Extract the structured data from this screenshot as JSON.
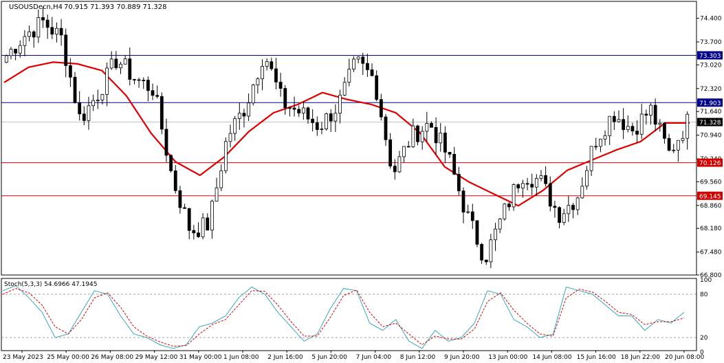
{
  "header": {
    "symbol_label": "USOUSDecn,H4",
    "ohlc_label": "70.915 71.393 70.889 71.328"
  },
  "oscillator": {
    "label": "Stoch(5,3,3) 54.6966 47.1945",
    "levels": [
      20,
      80
    ],
    "scale_labels": [
      "100",
      "80",
      "20",
      "0"
    ]
  },
  "colors": {
    "candle_outline": "#000000",
    "bear_fill": "#000000",
    "bull_fill": "#ffffff",
    "moving_average": "#e00000",
    "resistance_line": "#00008b",
    "support_line": "#d40000",
    "stoch_main": "#3aa6b8",
    "stoch_signal": "#d40000",
    "current_price_bg": "#000000"
  },
  "price_axis": {
    "min": 66.8,
    "max": 74.9,
    "tick_labels": [
      "74.400",
      "73.700",
      "73.020",
      "72.320",
      "71.640",
      "70.940",
      "70.240",
      "69.560",
      "68.860",
      "68.180",
      "67.480",
      "66.800"
    ]
  },
  "levels": [
    {
      "label": "73.303",
      "value": 73.303,
      "kind": "resistance"
    },
    {
      "label": "71.903",
      "value": 71.903,
      "kind": "resistance"
    },
    {
      "label": "71.328",
      "value": 71.328,
      "kind": "current"
    },
    {
      "label": "70.126",
      "value": 70.126,
      "kind": "support"
    },
    {
      "label": "69.145",
      "value": 69.145,
      "kind": "support"
    }
  ],
  "time_labels": [
    "23 May 2023",
    "25 May 00:00",
    "26 May 08:00",
    "29 May 12:00",
    "31 May 00:00",
    "1 Jun 08:00",
    "2 Jun 16:00",
    "5 Jun 20:00",
    "7 Jun 04:00",
    "8 Jun 12:00",
    "9 Jun 20:00",
    "13 Jun 00:00",
    "14 Jun 08:00",
    "15 Jun 16:00",
    "18 Jun 22:00",
    "20 Jun 08:00"
  ],
  "chart_data": {
    "type": "candlestick",
    "symbol": "USOUSDecn",
    "timeframe": "H4",
    "ylim": [
      66.8,
      74.9
    ],
    "anchors": [
      {
        "c": 73.3
      },
      {
        "c": 73.9
      },
      {
        "c": 74.3
      },
      {
        "c": 73.8
      },
      {
        "c": 71.4
      },
      {
        "c": 72.2
      },
      {
        "c": 73.2
      },
      {
        "c": 72.6
      },
      {
        "c": 72.3
      },
      {
        "c": 69.7
      },
      {
        "c": 68.1
      },
      {
        "c": 68.3
      },
      {
        "c": 70.9
      },
      {
        "c": 71.8
      },
      {
        "c": 73.4
      },
      {
        "c": 71.9
      },
      {
        "c": 71.6
      },
      {
        "c": 71.2
      },
      {
        "c": 71.8
      },
      {
        "c": 73.1
      },
      {
        "c": 72.6
      },
      {
        "c": 69.8
      },
      {
        "c": 70.9
      },
      {
        "c": 71.3
      },
      {
        "c": 70.3
      },
      {
        "c": 68.6
      },
      {
        "c": 67.3
      },
      {
        "c": 68.6
      },
      {
        "c": 69.8
      },
      {
        "c": 69.6
      },
      {
        "c": 68.6
      },
      {
        "c": 69.1
      },
      {
        "c": 70.8
      },
      {
        "c": 71.6
      },
      {
        "c": 71.1
      },
      {
        "c": 71.7
      },
      {
        "c": 70.4
      },
      {
        "c": 71.33
      }
    ],
    "moving_average": [
      72.5,
      72.95,
      73.1,
      73.05,
      72.85,
      72.1,
      71.0,
      70.15,
      69.75,
      70.3,
      71.05,
      71.6,
      71.85,
      72.2,
      72.0,
      71.85,
      71.6,
      71.0,
      70.0,
      69.55,
      69.2,
      68.85,
      69.3,
      69.9,
      70.2,
      70.5,
      70.75,
      71.3,
      71.3
    ],
    "stoch": {
      "period": [
        5,
        3,
        3
      ],
      "main_last": 54.6966,
      "signal_last": 47.1945,
      "main": [
        85,
        92,
        75,
        55,
        20,
        25,
        55,
        85,
        80,
        50,
        25,
        20,
        10,
        5,
        10,
        35,
        40,
        50,
        75,
        90,
        80,
        55,
        35,
        15,
        25,
        60,
        88,
        85,
        40,
        30,
        45,
        15,
        5,
        30,
        15,
        20,
        40,
        85,
        80,
        45,
        35,
        20,
        25,
        90,
        85,
        80,
        65,
        50,
        50,
        30,
        45,
        40,
        55
      ],
      "signal": [
        80,
        88,
        82,
        65,
        35,
        25,
        45,
        75,
        82,
        62,
        35,
        22,
        14,
        8,
        9,
        25,
        38,
        45,
        65,
        85,
        84,
        65,
        42,
        22,
        22,
        48,
        78,
        86,
        55,
        35,
        40,
        25,
        10,
        22,
        18,
        18,
        32,
        70,
        82,
        58,
        40,
        25,
        22,
        75,
        87,
        83,
        70,
        55,
        52,
        38,
        42,
        42,
        47
      ]
    }
  }
}
